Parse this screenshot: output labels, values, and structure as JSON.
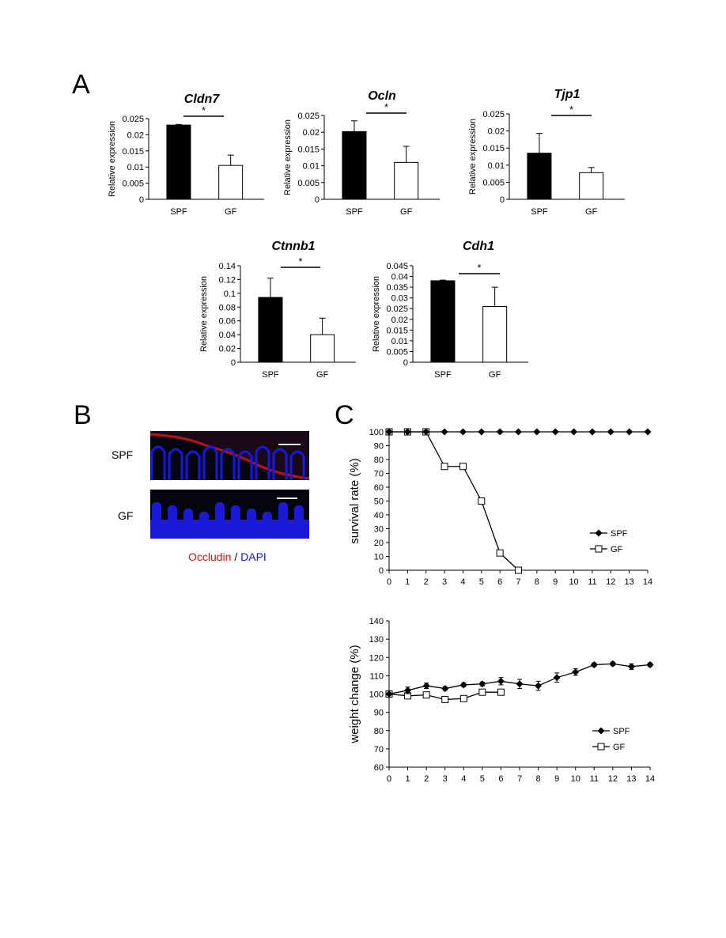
{
  "panels": {
    "a": "A",
    "b": "B",
    "c": "C"
  },
  "chart_data": [
    {
      "id": "cldn7",
      "type": "bar",
      "title": "Cldn7",
      "ylabel": "Relative  expression",
      "categories": [
        "SPF",
        "GF"
      ],
      "values": [
        0.023,
        0.0105
      ],
      "errors": [
        0.0002,
        0.0032
      ],
      "ylim": [
        0,
        0.025
      ],
      "ticks": [
        "0",
        "0.005",
        "0.01",
        "0.015",
        "0.02",
        "0.025"
      ],
      "tick_values": [
        0,
        0.005,
        0.01,
        0.015,
        0.02,
        0.025
      ],
      "significance": "*"
    },
    {
      "id": "ocln",
      "type": "bar",
      "title": "Ocln",
      "ylabel": "Relative  expression",
      "categories": [
        "SPF",
        "GF"
      ],
      "values": [
        0.0202,
        0.011
      ],
      "errors": [
        0.0032,
        0.0048
      ],
      "ylim": [
        0,
        0.025
      ],
      "ticks": [
        "0",
        "0.005",
        "0.01",
        "0.015",
        "0.02",
        "0.025"
      ],
      "tick_values": [
        0,
        0.005,
        0.01,
        0.015,
        0.02,
        0.025
      ],
      "significance": "*"
    },
    {
      "id": "tjp1",
      "type": "bar",
      "title": "Tjp1",
      "ylabel": "Relative  expression",
      "categories": [
        "SPF",
        "GF"
      ],
      "values": [
        0.0135,
        0.0078
      ],
      "errors": [
        0.0058,
        0.0015
      ],
      "ylim": [
        0,
        0.025
      ],
      "ticks": [
        "0",
        "0.005",
        "0.01",
        "0.015",
        "0.02",
        "0.025"
      ],
      "tick_values": [
        0,
        0.005,
        0.01,
        0.015,
        0.02,
        0.025
      ],
      "significance": "*"
    },
    {
      "id": "ctnnb1",
      "type": "bar",
      "title": "Ctnnb1",
      "ylabel": "Relative  expression",
      "categories": [
        "SPF",
        "GF"
      ],
      "values": [
        0.094,
        0.04
      ],
      "errors": [
        0.028,
        0.024
      ],
      "ylim": [
        0,
        0.14
      ],
      "ticks": [
        "0",
        "0.02",
        "0.04",
        "0.06",
        "0.08",
        "0.1",
        "0.12",
        "0.14"
      ],
      "tick_values": [
        0,
        0.02,
        0.04,
        0.06,
        0.08,
        0.1,
        0.12,
        0.14
      ],
      "significance": "*"
    },
    {
      "id": "cdh1",
      "type": "bar",
      "title": "Cdh1",
      "ylabel": "Relative  expression",
      "categories": [
        "SPF",
        "GF"
      ],
      "values": [
        0.038,
        0.026
      ],
      "errors": [
        0.0003,
        0.009
      ],
      "ylim": [
        0,
        0.045
      ],
      "ticks": [
        "0",
        "0.005",
        "0.01",
        "0.015",
        "0.02",
        "0.025",
        "0.03",
        "0.035",
        "0.04",
        "0.045"
      ],
      "tick_values": [
        0,
        0.005,
        0.01,
        0.015,
        0.02,
        0.025,
        0.03,
        0.035,
        0.04,
        0.045
      ],
      "significance": "*"
    },
    {
      "id": "survival",
      "type": "line",
      "ylabel": "survival rate (%)",
      "x": [
        0,
        1,
        2,
        3,
        4,
        5,
        6,
        7,
        8,
        9,
        10,
        11,
        12,
        13,
        14
      ],
      "ylim": [
        0,
        100
      ],
      "yticks": [
        0,
        10,
        20,
        30,
        40,
        50,
        60,
        70,
        80,
        90,
        100
      ],
      "series": [
        {
          "name": "SPF",
          "marker": "diamond",
          "x": [
            0,
            1,
            2,
            3,
            4,
            5,
            6,
            7,
            8,
            9,
            10,
            11,
            12,
            13,
            14
          ],
          "values": [
            100,
            100,
            100,
            100,
            100,
            100,
            100,
            100,
            100,
            100,
            100,
            100,
            100,
            100,
            100
          ]
        },
        {
          "name": "GF",
          "marker": "square",
          "x": [
            0,
            1,
            2,
            3,
            4,
            5,
            6,
            7
          ],
          "values": [
            100,
            100,
            100,
            75,
            75,
            50,
            12.5,
            0
          ]
        }
      ]
    },
    {
      "id": "weight",
      "type": "line",
      "ylabel": "weight change (%)",
      "x": [
        0,
        1,
        2,
        3,
        4,
        5,
        6,
        7,
        8,
        9,
        10,
        11,
        12,
        13,
        14
      ],
      "ylim": [
        60,
        140
      ],
      "yticks": [
        60,
        70,
        80,
        90,
        100,
        110,
        120,
        130,
        140
      ],
      "series": [
        {
          "name": "SPF",
          "marker": "diamond",
          "x": [
            0,
            1,
            2,
            3,
            4,
            5,
            6,
            7,
            8,
            9,
            10,
            11,
            12,
            13,
            14
          ],
          "values": [
            100,
            102,
            104.5,
            103,
            105,
            105.5,
            107,
            105.5,
            104.5,
            109,
            112,
            116,
            116.5,
            115,
            116
          ],
          "errors": [
            0.5,
            1.8,
            1.5,
            1,
            1,
            1,
            2,
            2.5,
            2.5,
            2.5,
            1.8,
            1,
            1,
            1.5,
            1
          ]
        },
        {
          "name": "GF",
          "marker": "square",
          "x": [
            0,
            1,
            2,
            3,
            4,
            5,
            6
          ],
          "values": [
            100,
            99,
            99.5,
            97,
            97.5,
            101,
            101
          ],
          "errors": [
            0.5,
            1,
            1,
            1.5,
            1.5,
            1,
            1
          ]
        }
      ]
    }
  ],
  "microscopy": {
    "rows": [
      "SPF",
      "GF"
    ],
    "caption_red": "Occludin",
    "caption_sep": " / ",
    "caption_blue": "DAPI",
    "colors": {
      "red": "#dd1111",
      "blue": "#1515dd",
      "background": "#050510"
    }
  }
}
